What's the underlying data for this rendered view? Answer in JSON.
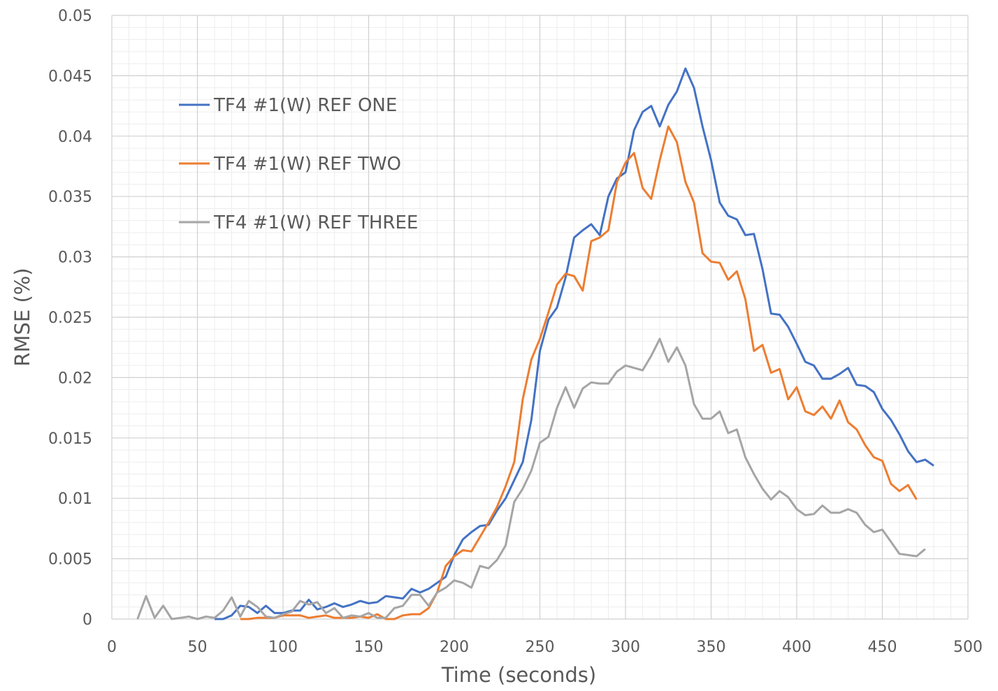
{
  "chart_data": {
    "type": "line",
    "title": "",
    "xlabel": "Time (seconds)",
    "ylabel": "RMSE (%)",
    "xlim": [
      0,
      500
    ],
    "ylim": [
      0,
      0.05
    ],
    "x_ticks": [
      "0",
      "50",
      "100",
      "150",
      "200",
      "250",
      "300",
      "350",
      "400",
      "450",
      "500"
    ],
    "y_ticks": [
      "0",
      "0.005",
      "0.01",
      "0.015",
      "0.02",
      "0.025",
      "0.03",
      "0.035",
      "0.04",
      "0.045",
      "0.05"
    ],
    "grid": "major and minor",
    "legend_position": "top-left",
    "series": [
      {
        "name": "TF4 #1(W) REF ONE",
        "color": "#4472C4",
        "x": [
          60,
          65,
          70,
          75,
          80,
          85,
          90,
          95,
          100,
          105,
          110,
          115,
          120,
          125,
          130,
          135,
          140,
          145,
          150,
          155,
          160,
          165,
          170,
          175,
          180,
          185,
          190,
          195,
          200,
          205,
          210,
          215,
          220,
          225,
          230,
          235,
          240,
          245,
          250,
          255,
          260,
          265,
          270,
          275,
          280,
          285,
          290,
          295,
          300,
          305,
          310,
          315,
          320,
          325,
          330,
          335,
          340,
          345,
          350,
          355,
          360,
          365,
          370,
          375,
          380,
          385,
          390,
          395,
          400,
          405,
          410,
          415,
          420,
          425,
          430,
          435,
          440,
          445,
          450,
          455,
          460,
          465,
          470,
          475,
          480
        ],
        "y": [
          0,
          0,
          0.0003,
          0.0011,
          0.001,
          0.0005,
          0.0011,
          0.0005,
          0.0005,
          0.0007,
          0.0007,
          0.0016,
          0.0008,
          0.001,
          0.0013,
          0.001,
          0.0012,
          0.0015,
          0.0013,
          0.0014,
          0.0019,
          0.0018,
          0.0017,
          0.0025,
          0.0022,
          0.0025,
          0.003,
          0.0035,
          0.0053,
          0.0066,
          0.0072,
          0.0077,
          0.0078,
          0.009,
          0.01,
          0.0115,
          0.013,
          0.0165,
          0.0222,
          0.0248,
          0.0258,
          0.0283,
          0.0316,
          0.0322,
          0.0327,
          0.0318,
          0.035,
          0.0365,
          0.037,
          0.0405,
          0.042,
          0.0425,
          0.0408,
          0.0426,
          0.0437,
          0.0456,
          0.044,
          0.0408,
          0.038,
          0.0345,
          0.0334,
          0.0331,
          0.0318,
          0.0319,
          0.029,
          0.0253,
          0.0252,
          0.0242,
          0.0228,
          0.0213,
          0.021,
          0.0199,
          0.0199,
          0.0203,
          0.0208,
          0.0194,
          0.0193,
          0.0188,
          0.0174,
          0.0165,
          0.0153,
          0.0139,
          0.013,
          0.0132,
          0.0127
        ]
      },
      {
        "name": "TF4 #1(W) REF TWO",
        "color": "#ED7D31",
        "x": [
          75,
          80,
          85,
          90,
          95,
          100,
          105,
          110,
          115,
          120,
          125,
          130,
          135,
          140,
          145,
          150,
          155,
          160,
          165,
          170,
          175,
          180,
          185,
          190,
          195,
          200,
          205,
          210,
          215,
          220,
          225,
          230,
          235,
          240,
          245,
          250,
          255,
          260,
          265,
          270,
          275,
          280,
          285,
          290,
          295,
          300,
          305,
          310,
          315,
          320,
          325,
          330,
          335,
          340,
          345,
          350,
          355,
          360,
          365,
          370,
          375,
          380,
          385,
          390,
          395,
          400,
          405,
          410,
          415,
          420,
          425,
          430,
          435,
          440,
          445,
          450,
          455,
          460,
          465,
          470
        ],
        "y": [
          0,
          0,
          0.0001,
          0.0001,
          0.0001,
          0.0003,
          0.0003,
          0.0003,
          0.0001,
          0.0002,
          0.0003,
          0.0001,
          0.0001,
          0.0001,
          0.0002,
          0.0001,
          0.0004,
          0,
          0,
          0.0003,
          0.0004,
          0.0004,
          0.0009,
          0.0022,
          0.0044,
          0.0052,
          0.0057,
          0.0056,
          0.0068,
          0.008,
          0.0093,
          0.011,
          0.013,
          0.0182,
          0.0215,
          0.0232,
          0.0254,
          0.0277,
          0.0286,
          0.0284,
          0.0272,
          0.0313,
          0.0316,
          0.0322,
          0.0362,
          0.0378,
          0.0386,
          0.0357,
          0.0348,
          0.038,
          0.0408,
          0.0395,
          0.0362,
          0.0345,
          0.0303,
          0.0296,
          0.0295,
          0.0281,
          0.0288,
          0.0265,
          0.0222,
          0.0227,
          0.0204,
          0.0207,
          0.0182,
          0.0192,
          0.0172,
          0.0169,
          0.0176,
          0.0166,
          0.0181,
          0.0163,
          0.0157,
          0.0144,
          0.0134,
          0.0131,
          0.0112,
          0.0106,
          0.0111,
          0.0099
        ]
      },
      {
        "name": "TF4 #1(W) REF THREE",
        "color": "#A5A5A5",
        "x": [
          15,
          20,
          25,
          30,
          35,
          40,
          45,
          50,
          55,
          60,
          65,
          70,
          75,
          80,
          85,
          90,
          95,
          100,
          105,
          110,
          115,
          120,
          125,
          130,
          135,
          140,
          145,
          150,
          155,
          160,
          165,
          170,
          175,
          180,
          185,
          190,
          195,
          200,
          205,
          210,
          215,
          220,
          225,
          230,
          235,
          240,
          245,
          250,
          255,
          260,
          265,
          270,
          275,
          280,
          285,
          290,
          295,
          300,
          305,
          310,
          315,
          320,
          325,
          330,
          335,
          340,
          345,
          350,
          355,
          360,
          365,
          370,
          375,
          380,
          385,
          390,
          395,
          400,
          405,
          410,
          415,
          420,
          425,
          430,
          435,
          440,
          445,
          450,
          455,
          460,
          465,
          470,
          475
        ],
        "y": [
          0,
          0.0019,
          0.0001,
          0.0011,
          0,
          0.0001,
          0.0002,
          0,
          0.0002,
          0.0001,
          0.0007,
          0.0018,
          0.0002,
          0.0015,
          0.001,
          0.0002,
          0.0001,
          0.0004,
          0.0006,
          0.0015,
          0.0012,
          0.0014,
          0.0005,
          0.0009,
          0.0001,
          0.0003,
          0.0002,
          0.0005,
          0.0001,
          0.0001,
          0.0009,
          0.0011,
          0.002,
          0.002,
          0.0011,
          0.0022,
          0.0026,
          0.0032,
          0.003,
          0.0026,
          0.0044,
          0.0042,
          0.0049,
          0.0061,
          0.0097,
          0.0108,
          0.0123,
          0.0146,
          0.0151,
          0.0175,
          0.0192,
          0.0175,
          0.0191,
          0.0196,
          0.0195,
          0.0195,
          0.0205,
          0.021,
          0.0208,
          0.0206,
          0.0218,
          0.0232,
          0.0213,
          0.0225,
          0.021,
          0.0178,
          0.0166,
          0.0166,
          0.0172,
          0.0154,
          0.0157,
          0.0134,
          0.012,
          0.0108,
          0.0099,
          0.0106,
          0.0101,
          0.0091,
          0.0086,
          0.0087,
          0.0094,
          0.0088,
          0.0088,
          0.0091,
          0.0088,
          0.0078,
          0.0072,
          0.0074,
          0.0064,
          0.0054,
          0.0053,
          0.0052,
          0.0058
        ]
      }
    ]
  }
}
